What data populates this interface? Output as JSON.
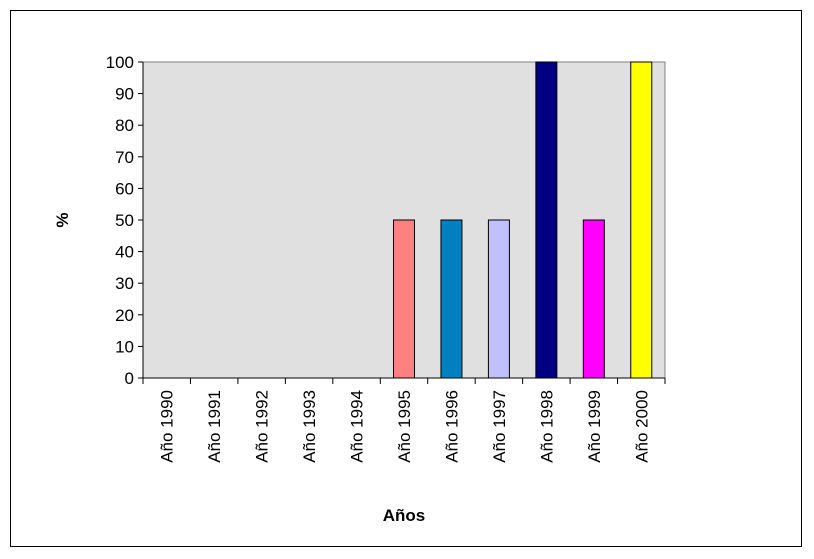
{
  "chart_data": {
    "type": "bar",
    "categories": [
      "Año 1990",
      "Año 1991",
      "Año 1992",
      "Año 1993",
      "Año 1994",
      "Año 1995",
      "Año 1996",
      "Año 1997",
      "Año 1998",
      "Año 1999",
      "Año 2000"
    ],
    "values": [
      0,
      0,
      0,
      0,
      0,
      50,
      50,
      50,
      100,
      50,
      100
    ],
    "colors": [
      "#FF8080",
      "#FF8080",
      "#FF8080",
      "#FF8080",
      "#FF8080",
      "#FF8080",
      "#0080C0",
      "#C0C0FF",
      "#000080",
      "#FF00FF",
      "#FFFF00"
    ],
    "title": "",
    "xlabel": "Años",
    "ylabel": "%",
    "ylim": [
      0,
      100
    ],
    "yticks": [
      0,
      10,
      20,
      30,
      40,
      50,
      60,
      70,
      80,
      90,
      100
    ],
    "plot_background": "#E0E0E0",
    "grid": false,
    "legend": "none"
  }
}
